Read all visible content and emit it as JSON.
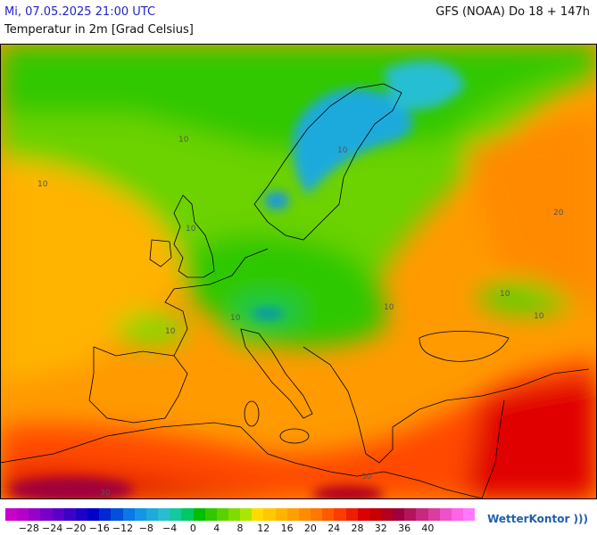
{
  "header": {
    "datetime": "Mi, 07.05.2025 21:00 UTC",
    "model": "GFS (NOAA) Do 18 + 147h",
    "parameter": "Temperatur in 2m [Grad Celsius]"
  },
  "map": {
    "contour_labels": [
      "10",
      "10",
      "10",
      "10",
      "10",
      "10",
      "10",
      "10",
      "10",
      "20",
      "30",
      "30"
    ]
  },
  "legend": {
    "tick_labels": [
      "−28",
      "−24",
      "−20",
      "−16",
      "−12",
      "−8",
      "−4",
      "0",
      "4",
      "8",
      "12",
      "16",
      "20",
      "24",
      "28",
      "32",
      "36",
      "40"
    ],
    "colors": [
      "#c800c8",
      "#b400c8",
      "#9600c8",
      "#7800c8",
      "#5a00c8",
      "#3c00c8",
      "#1e00c8",
      "#0000c8",
      "#0028d2",
      "#0050dc",
      "#0a78e6",
      "#1496e6",
      "#1eaadc",
      "#28bed2",
      "#14c8a0",
      "#00c864",
      "#00be00",
      "#32c800",
      "#5ad200",
      "#82dc00",
      "#aae600",
      "#ffdc00",
      "#ffc800",
      "#ffb400",
      "#ffa000",
      "#ff8c00",
      "#ff7800",
      "#ff5a00",
      "#ff3c00",
      "#f01e00",
      "#dc0000",
      "#c80000",
      "#b4001e",
      "#a0003c",
      "#b4145a",
      "#c8287d",
      "#dc3ca0",
      "#f050c8",
      "#ff64e6",
      "#ff78ff"
    ],
    "tick_values": [
      -28,
      -24,
      -20,
      -16,
      -12,
      -8,
      -4,
      0,
      4,
      8,
      12,
      16,
      20,
      24,
      28,
      32,
      36,
      40
    ]
  },
  "brand": {
    "name": "WetterKontor"
  }
}
